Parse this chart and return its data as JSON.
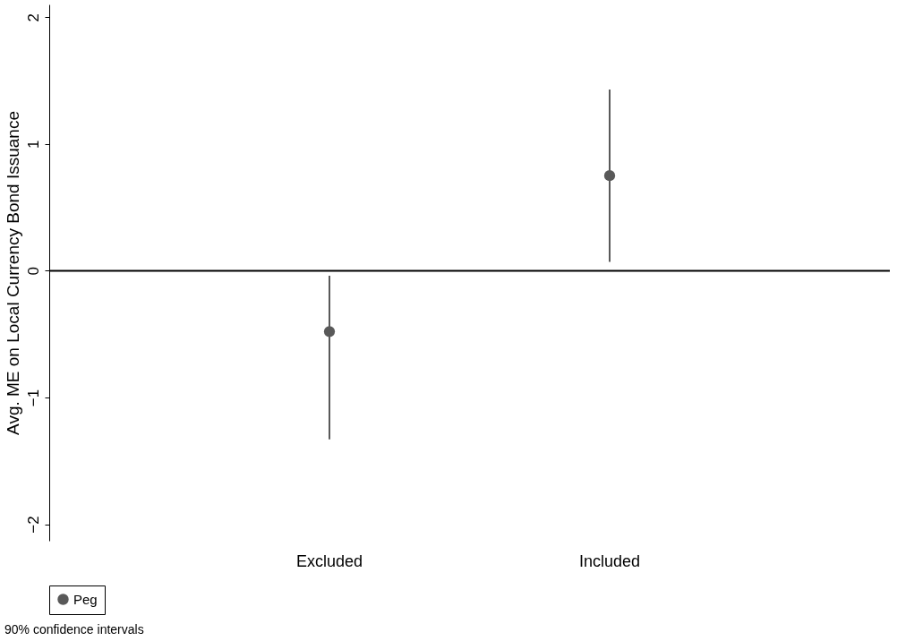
{
  "chart_data": {
    "type": "scatter",
    "ylabel": "Avg. ME on Local Currency Bond Issuance",
    "categories": [
      "Excluded",
      "Included"
    ],
    "series": [
      {
        "name": "Peg",
        "color": "#595959",
        "values": [
          -0.48,
          0.75
        ],
        "errors": [
          [
            -1.33,
            -0.04
          ],
          [
            0.07,
            1.43
          ]
        ]
      }
    ],
    "ylim": [
      -2.13,
      2.1
    ],
    "yticks": [
      -2,
      -1,
      0,
      1,
      2
    ],
    "grid": false,
    "marker": "circle",
    "legend": "bottom",
    "ref_lines": [
      {
        "axis": "y",
        "value": 0,
        "color": "#000000"
      }
    ],
    "annotations": [
      "90% confidence intervals"
    ]
  }
}
